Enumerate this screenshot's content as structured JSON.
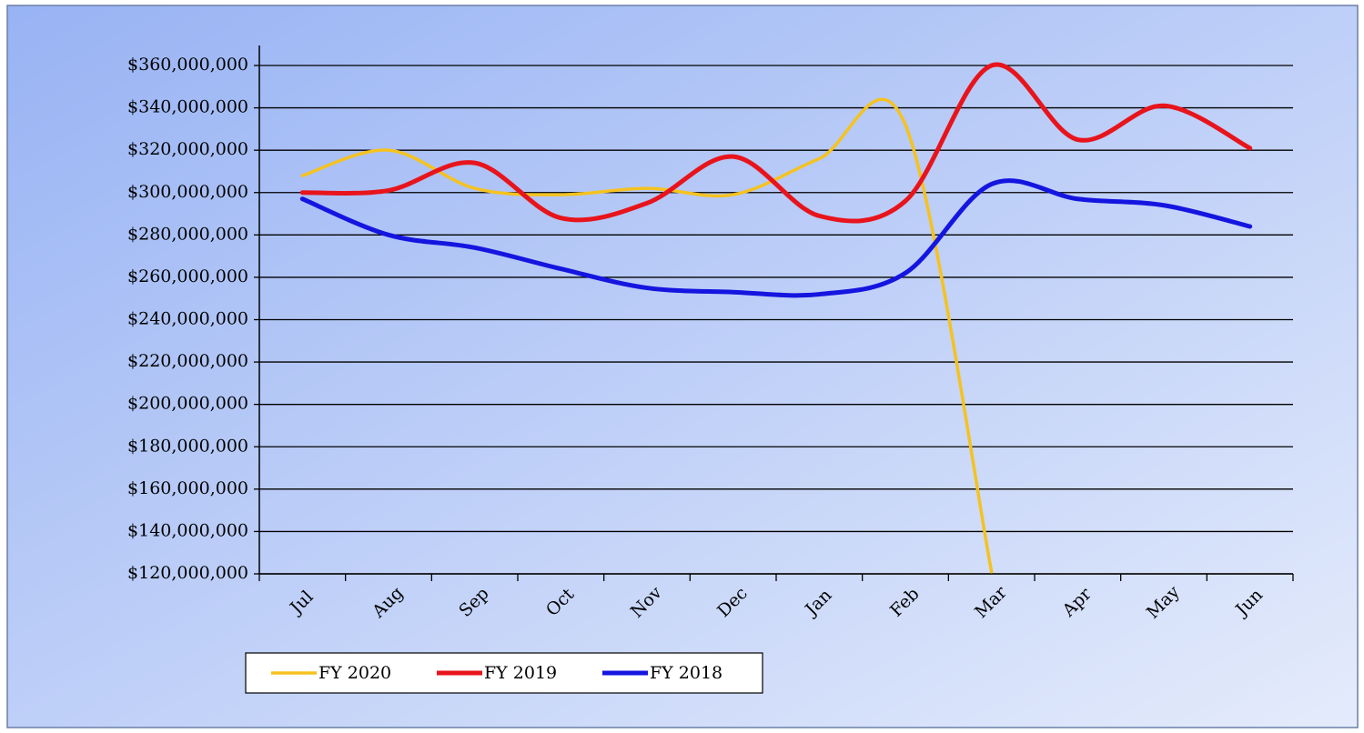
{
  "chart_data": {
    "type": "line",
    "categories": [
      "Jul",
      "Aug",
      "Sep",
      "Oct",
      "Nov",
      "Dec",
      "Jan",
      "Feb",
      "Mar",
      "Apr",
      "May",
      "Jun"
    ],
    "series": [
      {
        "name": "FY 2020",
        "color": "#f5c21f",
        "values": [
          308000000,
          320000000,
          302000000,
          299000000,
          302000000,
          299000000,
          316000000,
          332000000,
          121000000,
          null,
          null,
          null
        ]
      },
      {
        "name": "FY 2019",
        "color": "#e8141c",
        "values": [
          300000000,
          301000000,
          314000000,
          288000000,
          295000000,
          317000000,
          289000000,
          296000000,
          360000000,
          325000000,
          341000000,
          321000000
        ]
      },
      {
        "name": "FY 2018",
        "color": "#1515e0",
        "values": [
          297000000,
          280000000,
          274000000,
          264000000,
          255000000,
          253000000,
          252000000,
          262000000,
          304000000,
          297000000,
          294000000,
          284000000
        ]
      }
    ],
    "ylim": [
      120000000,
      360000000
    ],
    "yticks": [
      {
        "value": 120000000,
        "label": "$120,000,000"
      },
      {
        "value": 140000000,
        "label": "$140,000,000"
      },
      {
        "value": 160000000,
        "label": "$160,000,000"
      },
      {
        "value": 180000000,
        "label": "$180,000,000"
      },
      {
        "value": 200000000,
        "label": "$200,000,000"
      },
      {
        "value": 220000000,
        "label": "$220,000,000"
      },
      {
        "value": 240000000,
        "label": "$240,000,000"
      },
      {
        "value": 260000000,
        "label": "$260,000,000"
      },
      {
        "value": 280000000,
        "label": "$280,000,000"
      },
      {
        "value": 300000000,
        "label": "$300,000,000"
      },
      {
        "value": 320000000,
        "label": "$320,000,000"
      },
      {
        "value": 340000000,
        "label": "$340,000,000"
      },
      {
        "value": 360000000,
        "label": "$360,000,000"
      }
    ],
    "grid": true,
    "smooth": true,
    "legend": "bottom-left"
  }
}
